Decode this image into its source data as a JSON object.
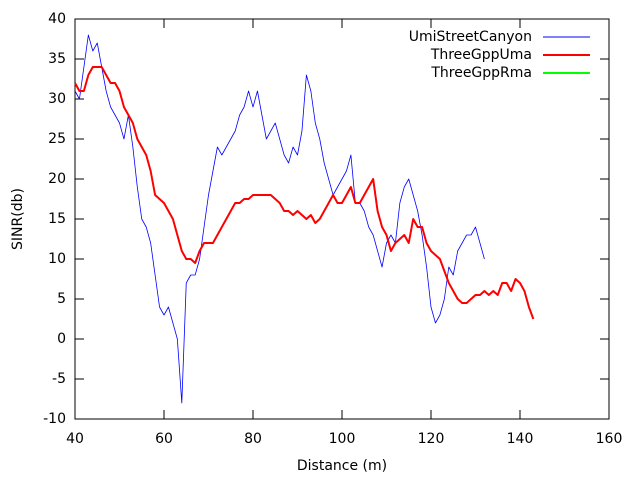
{
  "chart_data": {
    "type": "line",
    "xlabel": "Distance (m)",
    "ylabel": "SINR(db)",
    "xlim": [
      40,
      160
    ],
    "xticks": [
      40,
      60,
      80,
      100,
      120,
      140,
      160
    ],
    "ylim": [
      -10,
      40
    ],
    "yticks": [
      -10,
      -5,
      0,
      5,
      10,
      15,
      20,
      25,
      30,
      35,
      40
    ],
    "legend": "top-right",
    "series": [
      {
        "name": "UmiStreetCanyon",
        "color": "#0000ff",
        "x": [
          40,
          41,
          42,
          43,
          44,
          45,
          46,
          47,
          48,
          49,
          50,
          51,
          52,
          53,
          54,
          55,
          56,
          57,
          58,
          59,
          60,
          61,
          62,
          63,
          64,
          65,
          66,
          67,
          68,
          69,
          70,
          71,
          72,
          73,
          74,
          75,
          76,
          77,
          78,
          79,
          80,
          81,
          82,
          83,
          84,
          85,
          86,
          87,
          88,
          89,
          90,
          91,
          92,
          93,
          94,
          95,
          96,
          97,
          98,
          99,
          100,
          101,
          102,
          103,
          104,
          105,
          106,
          107,
          108,
          109,
          110,
          111,
          112,
          113,
          114,
          115,
          116,
          117,
          118,
          119,
          120,
          121,
          122,
          123,
          124,
          125,
          126,
          127,
          128,
          129,
          130,
          131,
          132
        ],
        "values": [
          31,
          30,
          34,
          38,
          36,
          37,
          34,
          31,
          29,
          28,
          27,
          25,
          28,
          24,
          19,
          15,
          14,
          12,
          8,
          4,
          3,
          4,
          2,
          0,
          -8,
          7,
          8,
          8,
          10,
          14,
          18,
          21,
          24,
          23,
          24,
          25,
          26,
          28,
          29,
          31,
          29,
          31,
          28,
          25,
          26,
          27,
          25,
          23,
          22,
          24,
          23,
          26,
          33,
          31,
          27,
          25,
          22,
          20,
          18,
          19,
          20,
          21,
          23,
          17,
          17,
          16,
          14,
          13,
          11,
          9,
          12,
          13,
          12,
          17,
          19,
          20,
          18,
          16,
          13,
          9,
          4,
          2,
          3,
          5,
          9,
          8,
          11,
          12,
          13,
          13,
          14,
          12,
          10
        ]
      },
      {
        "name": "ThreeGppUma",
        "color": "#ff0000",
        "x": [
          40,
          41,
          42,
          43,
          44,
          45,
          46,
          47,
          48,
          49,
          50,
          51,
          52,
          53,
          54,
          55,
          56,
          57,
          58,
          59,
          60,
          61,
          62,
          63,
          64,
          65,
          66,
          67,
          68,
          69,
          70,
          71,
          72,
          73,
          74,
          75,
          76,
          77,
          78,
          79,
          80,
          81,
          82,
          83,
          84,
          85,
          86,
          87,
          88,
          89,
          90,
          91,
          92,
          93,
          94,
          95,
          96,
          97,
          98,
          99,
          100,
          101,
          102,
          103,
          104,
          105,
          106,
          107,
          108,
          109,
          110,
          111,
          112,
          113,
          114,
          115,
          116,
          117,
          118,
          119,
          120,
          121,
          122,
          123,
          124,
          125,
          126,
          127,
          128,
          129,
          130,
          131,
          132,
          133,
          134,
          135,
          136,
          137,
          138,
          139,
          140,
          141,
          142,
          143
        ],
        "values": [
          32,
          31,
          31,
          33,
          34,
          34,
          34,
          33,
          32,
          32,
          31,
          29,
          28,
          27,
          25,
          24,
          23,
          21,
          18,
          17.5,
          17,
          16,
          15,
          13,
          11,
          10,
          10,
          9.5,
          11,
          12,
          12,
          12,
          13,
          14,
          15,
          16,
          17,
          17,
          17.5,
          17.5,
          18,
          18,
          18,
          18,
          18,
          17.5,
          17,
          16,
          16,
          15.5,
          16,
          15.5,
          15,
          15.5,
          14.5,
          15,
          16,
          17,
          18,
          17,
          17,
          18,
          19,
          17,
          17,
          18,
          19,
          20,
          16,
          14,
          13,
          11,
          12,
          12.5,
          13,
          12,
          15,
          14,
          14,
          12,
          11,
          10.5,
          10,
          8.5,
          7,
          6,
          5,
          4.5,
          4.5,
          5,
          5.5,
          5.5,
          6,
          5.5,
          6,
          5.5,
          7,
          7,
          6,
          7.5,
          7,
          6,
          4,
          2.5
        ]
      },
      {
        "name": "ThreeGppRma",
        "color": "#00ff00",
        "x": [],
        "values": []
      }
    ]
  }
}
